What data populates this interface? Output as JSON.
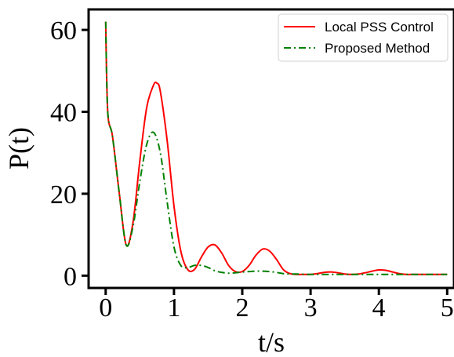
{
  "chart_data": {
    "type": "line",
    "title": "",
    "xlabel": "t/s",
    "ylabel": "P(t)",
    "xlim": [
      -0.25,
      5.1
    ],
    "ylim": [
      -3,
      65
    ],
    "xticks": [
      0,
      1,
      2,
      3,
      4,
      5
    ],
    "yticks": [
      0,
      20,
      40,
      60
    ],
    "xtick_labels": [
      "0",
      "1",
      "2",
      "3",
      "4",
      "5"
    ],
    "ytick_labels": [
      "0",
      "20",
      "40",
      "60"
    ],
    "grid": false,
    "legend_position": "top-right",
    "series": [
      {
        "name": "Local PSS Control",
        "color": "#ff0000",
        "style": "solid",
        "x": [
          0,
          0.03,
          0.1,
          0.2,
          0.3,
          0.4,
          0.5,
          0.6,
          0.7,
          0.75,
          0.8,
          0.9,
          1.0,
          1.1,
          1.2,
          1.3,
          1.4,
          1.5,
          1.6,
          1.7,
          1.8,
          1.9,
          2.0,
          2.1,
          2.2,
          2.3,
          2.4,
          2.5,
          2.6,
          2.7,
          2.8,
          2.9,
          3.0,
          3.1,
          3.2,
          3.3,
          3.4,
          3.5,
          3.6,
          3.7,
          3.8,
          3.9,
          4.0,
          4.1,
          4.2,
          4.3,
          4.4,
          4.5,
          4.6,
          4.7,
          4.8,
          4.9,
          5.0
        ],
        "y": [
          62,
          40,
          34,
          20,
          7.5,
          13,
          28,
          41,
          46.5,
          47,
          45,
          33,
          17,
          6,
          1.5,
          1.5,
          4.5,
          7,
          7.5,
          5.5,
          2.5,
          1,
          1,
          2.5,
          5,
          6.5,
          6,
          4,
          1.5,
          0.5,
          0.3,
          0.3,
          0.3,
          0.5,
          0.8,
          0.9,
          0.7,
          0.4,
          0.3,
          0.4,
          0.7,
          1.1,
          1.4,
          1.3,
          0.9,
          0.5,
          0.3,
          0.3,
          0.3,
          0.3,
          0.3,
          0.3,
          0.3
        ]
      },
      {
        "name": "Proposed Method",
        "color": "#008000",
        "style": "dashdot",
        "x": [
          0,
          0.03,
          0.1,
          0.2,
          0.3,
          0.4,
          0.5,
          0.6,
          0.7,
          0.8,
          0.9,
          1.0,
          1.1,
          1.2,
          1.3,
          1.4,
          1.5,
          1.6,
          1.7,
          1.8,
          1.9,
          2.0,
          2.1,
          2.2,
          2.3,
          2.4,
          2.5,
          2.6,
          2.7,
          2.8,
          3.0,
          3.2,
          3.5,
          4.0,
          4.5,
          5.0
        ],
        "y": [
          62,
          40,
          34,
          20,
          7.5,
          12,
          23,
          32,
          35,
          30,
          18,
          7,
          2.5,
          2,
          2.5,
          2.5,
          2,
          1.2,
          0.8,
          0.6,
          0.7,
          0.9,
          1,
          1.1,
          1.1,
          1,
          0.8,
          0.5,
          0.4,
          0.4,
          0.3,
          0.3,
          0.3,
          0.3,
          0.3,
          0.3
        ]
      }
    ]
  }
}
